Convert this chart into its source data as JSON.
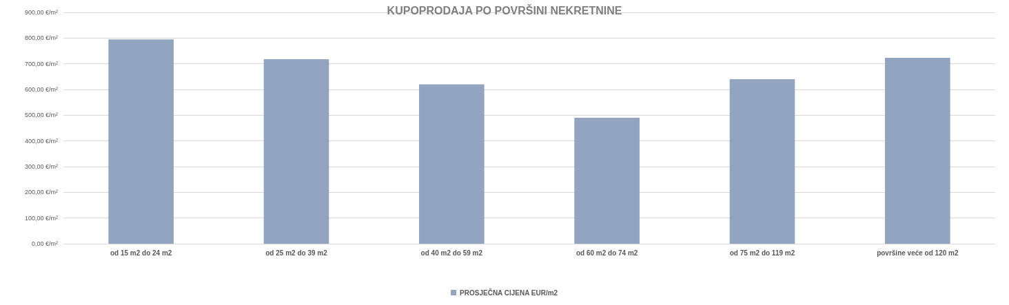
{
  "chart_data": {
    "type": "bar",
    "title": "KUPOPRODAJA PO POVRŠINI NEKRETNINE",
    "categories": [
      "od 15 m2 do 24 m2",
      "od 25 m2 do 39 m2",
      "od 40 m2 do 59 m2",
      "od 60 m2 do 74 m2",
      "od 75 m2 do 119 m2",
      "površine veće od 120 m2"
    ],
    "series": [
      {
        "name": "PROSJEČNA CIJENA EUR/m2",
        "color": "#93a4c0",
        "values": [
          795,
          718,
          620,
          490,
          640,
          723
        ]
      }
    ],
    "ylim": [
      0,
      900
    ],
    "yticks": [
      {
        "value": 0,
        "label": "0,00 €/m²"
      },
      {
        "value": 100,
        "label": "100,00 €/m²"
      },
      {
        "value": 200,
        "label": "200,00 €/m²"
      },
      {
        "value": 300,
        "label": "300,00 €/m²"
      },
      {
        "value": 400,
        "label": "400,00 €/m²"
      },
      {
        "value": 500,
        "label": "500,00 €/m²"
      },
      {
        "value": 600,
        "label": "600,00 €/m²"
      },
      {
        "value": 700,
        "label": "700,00 €/m²"
      },
      {
        "value": 800,
        "label": "800,00 €/m²"
      },
      {
        "value": 900,
        "label": "900,00 €/m²"
      }
    ],
    "grid": "y",
    "legend": "bottom"
  }
}
